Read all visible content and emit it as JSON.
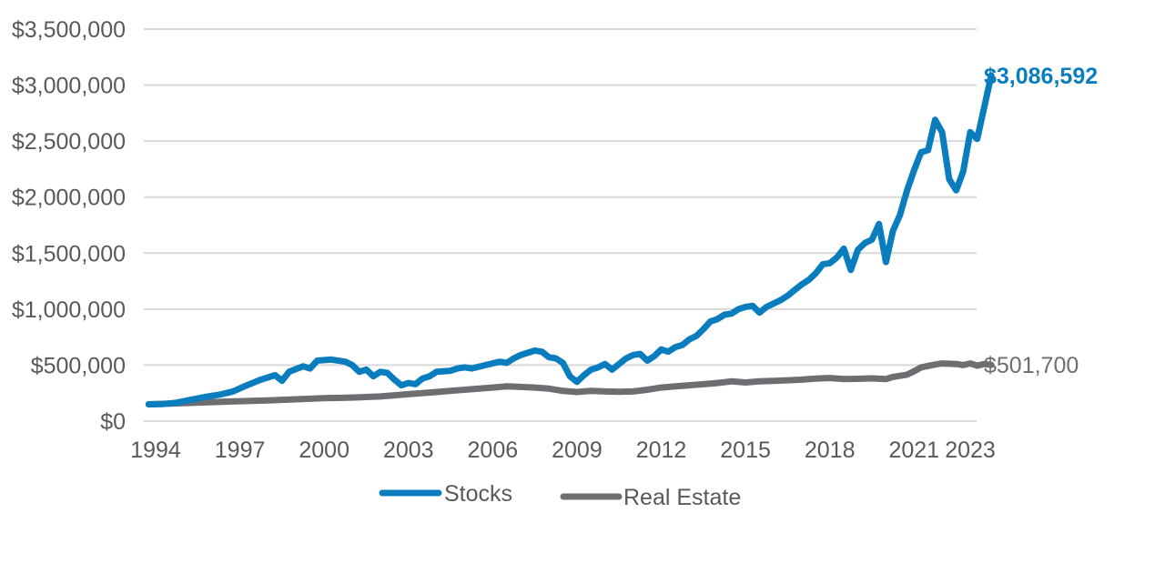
{
  "chart_data": {
    "type": "line",
    "title": "",
    "xlabel": "",
    "ylabel": "",
    "ylim": [
      0,
      3500000
    ],
    "xlim": [
      1993.7,
      2023.3
    ],
    "grid": true,
    "legend_position": "bottom",
    "x_tick_values": [
      1994,
      1997,
      2000,
      2003,
      2006,
      2009,
      2012,
      2015,
      2018,
      2021,
      2023
    ],
    "x_tick_labels": [
      "1994",
      "1997",
      "2000",
      "2003",
      "2006",
      "2009",
      "2012",
      "2015",
      "2018",
      "2021",
      "2023"
    ],
    "y_tick_values": [
      0,
      500000,
      1000000,
      1500000,
      2000000,
      2500000,
      3000000,
      3500000
    ],
    "y_tick_labels": [
      "$0",
      "$500,000",
      "$1,000,000",
      "$1,500,000",
      "$2,000,000",
      "$2,500,000",
      "$3,000,000",
      "$3,500,000"
    ],
    "series": [
      {
        "name": "Stocks",
        "color": "#0A7DBF",
        "end_label": "$3,086,592",
        "points": [
          [
            1993.75,
            150000
          ],
          [
            1994.25,
            152000
          ],
          [
            1994.75,
            165000
          ],
          [
            1995.25,
            190000
          ],
          [
            1995.75,
            215000
          ],
          [
            1996.25,
            235000
          ],
          [
            1996.75,
            265000
          ],
          [
            1997.25,
            320000
          ],
          [
            1997.75,
            370000
          ],
          [
            1998.25,
            410000
          ],
          [
            1998.5,
            360000
          ],
          [
            1998.75,
            440000
          ],
          [
            1999.25,
            490000
          ],
          [
            1999.5,
            470000
          ],
          [
            1999.75,
            540000
          ],
          [
            2000.25,
            550000
          ],
          [
            2000.75,
            530000
          ],
          [
            2001.0,
            500000
          ],
          [
            2001.25,
            440000
          ],
          [
            2001.5,
            460000
          ],
          [
            2001.75,
            400000
          ],
          [
            2002.0,
            440000
          ],
          [
            2002.25,
            430000
          ],
          [
            2002.5,
            370000
          ],
          [
            2002.75,
            320000
          ],
          [
            2003.0,
            340000
          ],
          [
            2003.25,
            330000
          ],
          [
            2003.5,
            380000
          ],
          [
            2003.75,
            400000
          ],
          [
            2004.0,
            440000
          ],
          [
            2004.5,
            450000
          ],
          [
            2004.75,
            470000
          ],
          [
            2005.0,
            480000
          ],
          [
            2005.25,
            470000
          ],
          [
            2005.75,
            500000
          ],
          [
            2006.25,
            530000
          ],
          [
            2006.5,
            520000
          ],
          [
            2006.75,
            560000
          ],
          [
            2007.0,
            590000
          ],
          [
            2007.25,
            610000
          ],
          [
            2007.5,
            630000
          ],
          [
            2007.75,
            620000
          ],
          [
            2008.0,
            570000
          ],
          [
            2008.25,
            560000
          ],
          [
            2008.5,
            520000
          ],
          [
            2008.75,
            400000
          ],
          [
            2009.0,
            350000
          ],
          [
            2009.25,
            410000
          ],
          [
            2009.5,
            460000
          ],
          [
            2009.75,
            480000
          ],
          [
            2010.0,
            510000
          ],
          [
            2010.25,
            460000
          ],
          [
            2010.5,
            510000
          ],
          [
            2010.75,
            560000
          ],
          [
            2011.0,
            590000
          ],
          [
            2011.25,
            600000
          ],
          [
            2011.5,
            540000
          ],
          [
            2011.75,
            580000
          ],
          [
            2012.0,
            640000
          ],
          [
            2012.25,
            620000
          ],
          [
            2012.5,
            660000
          ],
          [
            2012.75,
            680000
          ],
          [
            2013.0,
            730000
          ],
          [
            2013.25,
            760000
          ],
          [
            2013.5,
            820000
          ],
          [
            2013.75,
            890000
          ],
          [
            2014.0,
            910000
          ],
          [
            2014.25,
            950000
          ],
          [
            2014.5,
            960000
          ],
          [
            2014.75,
            1000000
          ],
          [
            2015.0,
            1020000
          ],
          [
            2015.25,
            1030000
          ],
          [
            2015.5,
            970000
          ],
          [
            2015.75,
            1020000
          ],
          [
            2016.0,
            1050000
          ],
          [
            2016.25,
            1080000
          ],
          [
            2016.5,
            1120000
          ],
          [
            2016.75,
            1170000
          ],
          [
            2017.0,
            1220000
          ],
          [
            2017.25,
            1260000
          ],
          [
            2017.5,
            1320000
          ],
          [
            2017.75,
            1400000
          ],
          [
            2018.0,
            1410000
          ],
          [
            2018.25,
            1460000
          ],
          [
            2018.5,
            1540000
          ],
          [
            2018.75,
            1350000
          ],
          [
            2019.0,
            1530000
          ],
          [
            2019.25,
            1590000
          ],
          [
            2019.5,
            1620000
          ],
          [
            2019.75,
            1760000
          ],
          [
            2020.0,
            1420000
          ],
          [
            2020.25,
            1700000
          ],
          [
            2020.5,
            1840000
          ],
          [
            2020.75,
            2060000
          ],
          [
            2021.0,
            2240000
          ],
          [
            2021.25,
            2400000
          ],
          [
            2021.5,
            2420000
          ],
          [
            2021.75,
            2690000
          ],
          [
            2022.0,
            2580000
          ],
          [
            2022.25,
            2160000
          ],
          [
            2022.5,
            2060000
          ],
          [
            2022.75,
            2230000
          ],
          [
            2023.0,
            2580000
          ],
          [
            2023.25,
            2520000
          ],
          [
            2023.75,
            3086592
          ]
        ]
      },
      {
        "name": "Real Estate",
        "color": "#6D6E71",
        "end_label": "$501,700",
        "points": [
          [
            1993.75,
            150000
          ],
          [
            1995.0,
            160000
          ],
          [
            1996.0,
            170000
          ],
          [
            1997.0,
            178000
          ],
          [
            1998.0,
            185000
          ],
          [
            1999.0,
            195000
          ],
          [
            2000.0,
            205000
          ],
          [
            2001.0,
            210000
          ],
          [
            2002.0,
            220000
          ],
          [
            2003.0,
            240000
          ],
          [
            2004.0,
            260000
          ],
          [
            2005.0,
            280000
          ],
          [
            2006.0,
            300000
          ],
          [
            2006.5,
            310000
          ],
          [
            2007.0,
            305000
          ],
          [
            2007.5,
            300000
          ],
          [
            2008.0,
            290000
          ],
          [
            2008.5,
            270000
          ],
          [
            2009.0,
            260000
          ],
          [
            2009.5,
            270000
          ],
          [
            2010.0,
            265000
          ],
          [
            2010.5,
            262000
          ],
          [
            2011.0,
            265000
          ],
          [
            2011.5,
            280000
          ],
          [
            2012.0,
            300000
          ],
          [
            2012.5,
            310000
          ],
          [
            2013.0,
            320000
          ],
          [
            2013.5,
            330000
          ],
          [
            2014.0,
            340000
          ],
          [
            2014.5,
            355000
          ],
          [
            2015.0,
            345000
          ],
          [
            2015.5,
            355000
          ],
          [
            2016.0,
            360000
          ],
          [
            2016.5,
            365000
          ],
          [
            2017.0,
            370000
          ],
          [
            2017.5,
            380000
          ],
          [
            2018.0,
            385000
          ],
          [
            2018.5,
            375000
          ],
          [
            2019.0,
            378000
          ],
          [
            2019.5,
            382000
          ],
          [
            2020.0,
            375000
          ],
          [
            2020.25,
            395000
          ],
          [
            2020.75,
            415000
          ],
          [
            2021.0,
            445000
          ],
          [
            2021.25,
            480000
          ],
          [
            2021.75,
            505000
          ],
          [
            2022.0,
            515000
          ],
          [
            2022.5,
            510000
          ],
          [
            2022.75,
            500000
          ],
          [
            2023.0,
            515000
          ],
          [
            2023.25,
            495000
          ],
          [
            2023.5,
            510000
          ],
          [
            2023.75,
            501700
          ]
        ]
      }
    ]
  }
}
